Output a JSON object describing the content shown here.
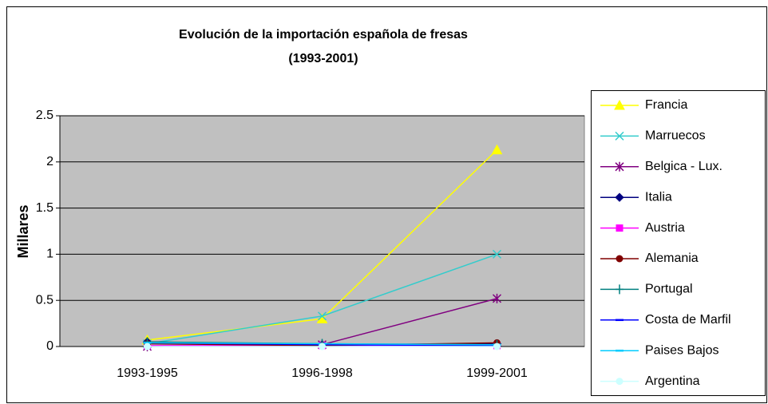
{
  "chart_data": {
    "type": "line",
    "title": "Evolución de la importación española de fresas",
    "subtitle": "(1993-2001)",
    "y_label": "Millares",
    "categories": [
      "1993-1995",
      "1996-1998",
      "1999-2001"
    ],
    "ylim": [
      0,
      2.5
    ],
    "yticks": [
      0,
      0.5,
      1,
      1.5,
      2,
      2.5
    ],
    "grid": true,
    "series": [
      {
        "name": "Francia",
        "color": "#ffff00",
        "marker": "triangle",
        "values": [
          0.07,
          0.3,
          2.13
        ]
      },
      {
        "name": "Marruecos",
        "color": "#33cccc",
        "marker": "x",
        "values": [
          0.03,
          0.33,
          1.0
        ]
      },
      {
        "name": "Belgica - Lux.",
        "color": "#800080",
        "marker": "star",
        "values": [
          0.0,
          0.02,
          0.52
        ]
      },
      {
        "name": "Italia",
        "color": "#000080",
        "marker": "diamond",
        "values": [
          0.05,
          0.02,
          0.03
        ]
      },
      {
        "name": "Austria",
        "color": "#ff00ff",
        "marker": "square",
        "values": [
          0.01,
          0.01,
          0.01
        ]
      },
      {
        "name": "Alemania",
        "color": "#800000",
        "marker": "circle",
        "values": [
          0.03,
          0.01,
          0.04
        ]
      },
      {
        "name": "Portugal",
        "color": "#008080",
        "marker": "plus",
        "values": [
          0.05,
          0.03,
          0.02
        ]
      },
      {
        "name": "Costa de Marfil",
        "color": "#0000ff",
        "marker": "dash",
        "values": [
          0.04,
          0.02,
          0.01
        ]
      },
      {
        "name": "Paises Bajos",
        "color": "#00ccff",
        "marker": "dash",
        "values": [
          0.04,
          0.03,
          0.02
        ]
      },
      {
        "name": "Argentina",
        "color": "#ccffff",
        "marker": "circle",
        "values": [
          0.0,
          0.0,
          0.0
        ]
      }
    ]
  }
}
